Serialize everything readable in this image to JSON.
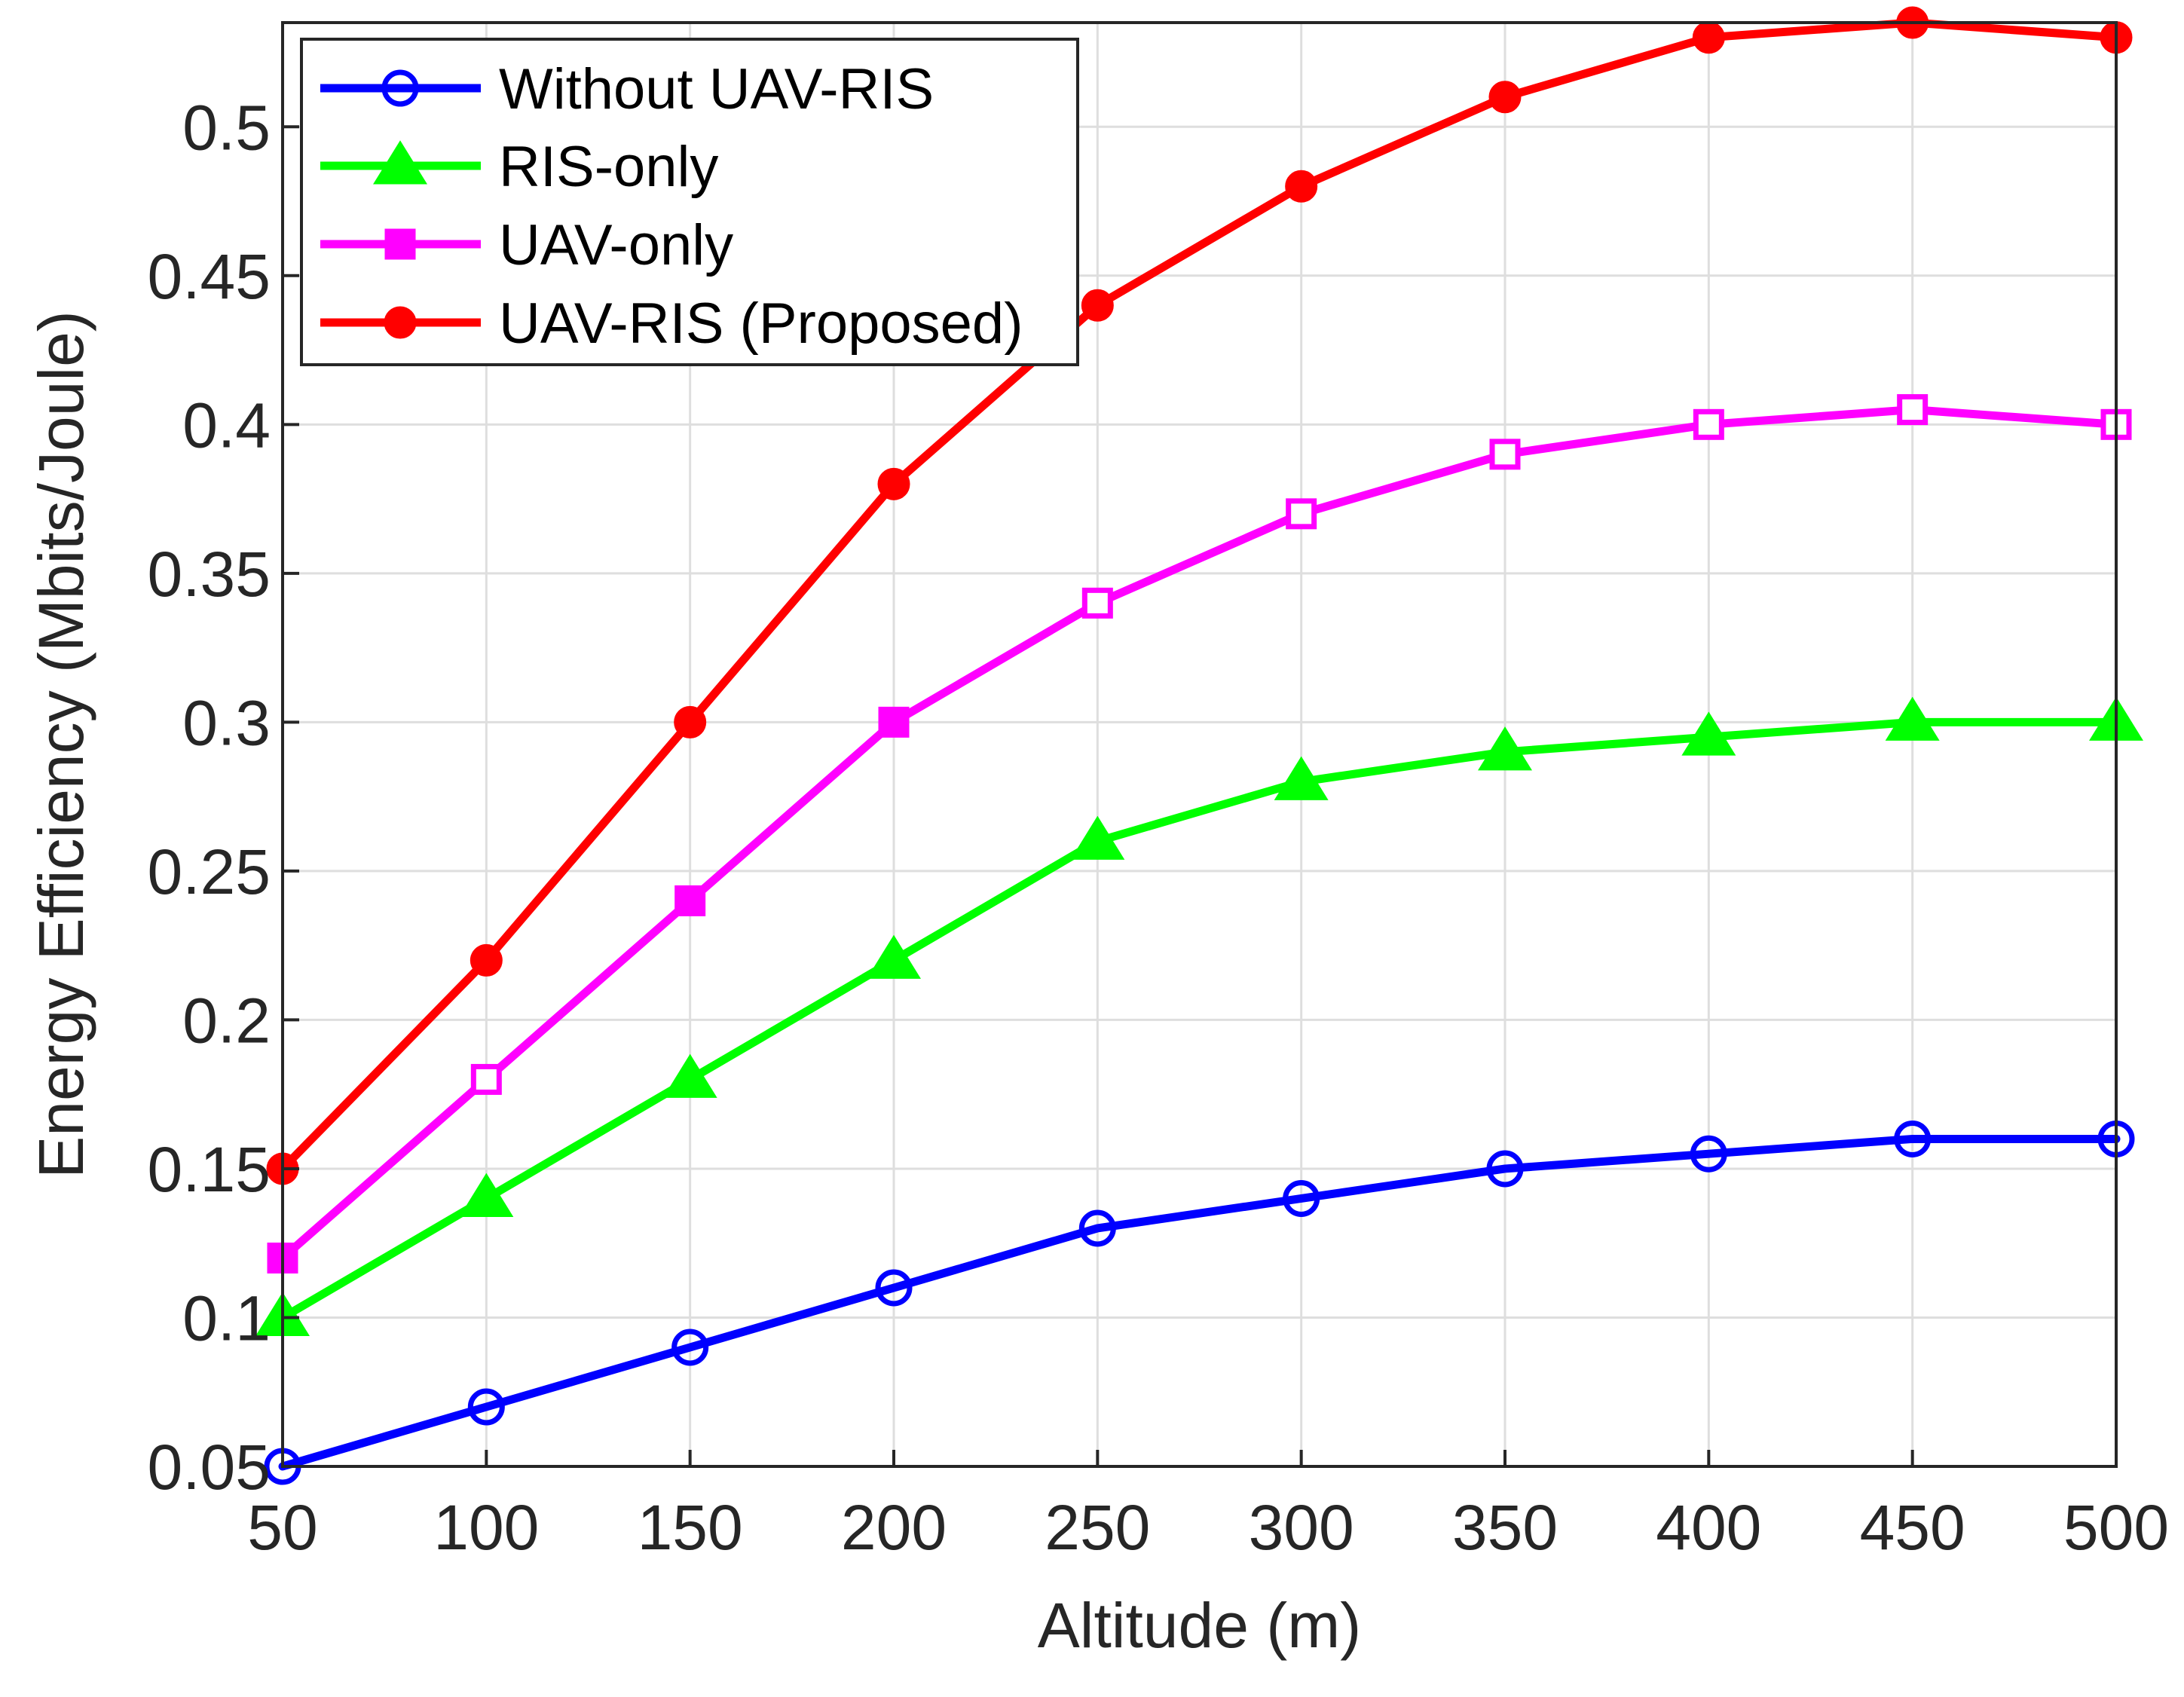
{
  "chart_data": {
    "type": "line",
    "title": "",
    "xlabel": "Altitude (m)",
    "ylabel": "Energy Efficiency (Mbits/Joule)",
    "x": [
      50,
      100,
      150,
      200,
      250,
      300,
      350,
      400,
      450,
      500
    ],
    "xlim": [
      50,
      500
    ],
    "ylim": [
      0.05,
      0.535
    ],
    "xticks": [
      50,
      100,
      150,
      200,
      250,
      300,
      350,
      400,
      450,
      500
    ],
    "xtick_labels": [
      "50",
      "100",
      "150",
      "200",
      "250",
      "300",
      "350",
      "400",
      "450",
      "500"
    ],
    "yticks": [
      0.05,
      0.1,
      0.15,
      0.2,
      0.25,
      0.3,
      0.35,
      0.4,
      0.45,
      0.5
    ],
    "ytick_labels": [
      "0.05",
      "0.1",
      "0.15",
      "0.2",
      "0.25",
      "0.3",
      "0.35",
      "0.4",
      "0.45",
      "0.5"
    ],
    "grid": true,
    "legend_position": "top-left",
    "series": [
      {
        "name": "Without UAV-RIS",
        "color": "#0000ff",
        "marker": "circle-open",
        "values": [
          0.05,
          0.07,
          0.09,
          0.11,
          0.13,
          0.14,
          0.15,
          0.155,
          0.16,
          0.16
        ]
      },
      {
        "name": "RIS-only",
        "color": "#00ff00",
        "marker": "triangle-filled",
        "values": [
          0.1,
          0.14,
          0.18,
          0.22,
          0.26,
          0.28,
          0.29,
          0.295,
          0.3,
          0.3
        ]
      },
      {
        "name": "UAV-only",
        "color": "#ff00ff",
        "marker": "square-mixed",
        "values": [
          0.12,
          0.18,
          0.24,
          0.3,
          0.34,
          0.37,
          0.39,
          0.4,
          0.405,
          0.4
        ]
      },
      {
        "name": "UAV-RIS (Proposed)",
        "color": "#ff0000",
        "marker": "circle-filled",
        "values": [
          0.15,
          0.22,
          0.3,
          0.38,
          0.44,
          0.48,
          0.51,
          0.53,
          0.535,
          0.53
        ]
      }
    ]
  }
}
